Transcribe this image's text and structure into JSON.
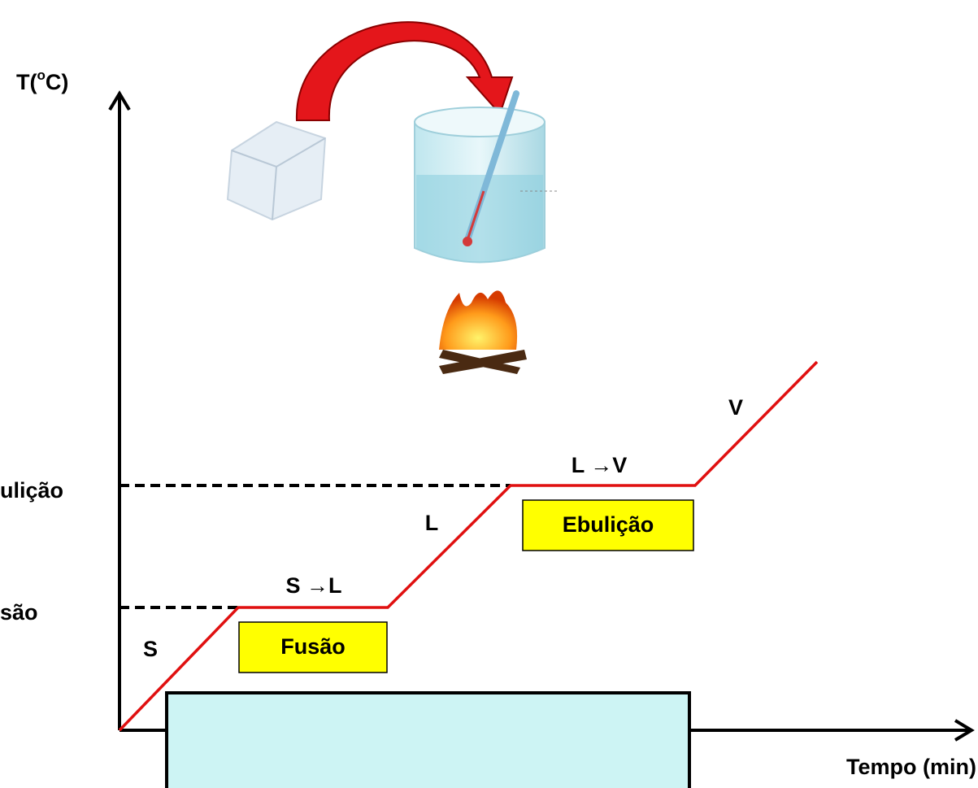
{
  "axes": {
    "y_label": {
      "prefix": "T(",
      "sup": "o",
      "suffix": "C)"
    },
    "x_label": "Tempo (min)"
  },
  "levels": {
    "boiling": "ulição",
    "melting": "são"
  },
  "phases": {
    "solid": "S",
    "melting": "S →L",
    "liquid": "L",
    "boiling": "L →V",
    "vapor": "V"
  },
  "boxes": {
    "fusion": "Fusão",
    "boiling": "Ebulição"
  }
}
